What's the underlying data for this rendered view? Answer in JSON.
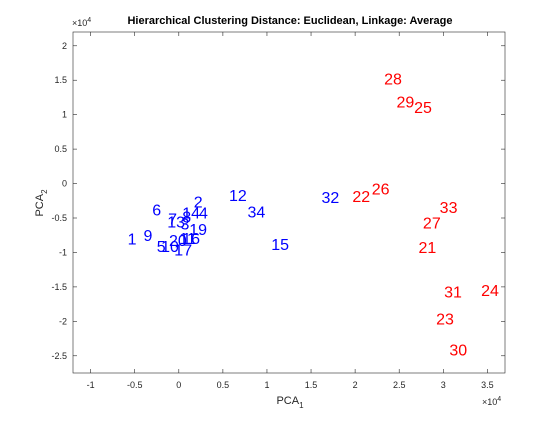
{
  "chart_data": {
    "type": "scatter",
    "title": "Hierarchical Clustering Distance: Euclidean, Linkage: Average",
    "xlabel": "PCA",
    "xlabel_sub": "1",
    "ylabel": "PCA",
    "ylabel_sub": "2",
    "x_multiplier": "×10",
    "x_multiplier_exp": "4",
    "y_multiplier": "×10",
    "y_multiplier_exp": "4",
    "xlim": [
      -1.2,
      3.7
    ],
    "ylim": [
      -2.75,
      2.2
    ],
    "xticks": [
      -1,
      -0.5,
      0,
      0.5,
      1,
      1.5,
      2,
      2.5,
      3,
      3.5
    ],
    "xtick_labels": [
      "-1",
      "-0.5",
      "0",
      "0.5",
      "1",
      "1.5",
      "2",
      "2.5",
      "3",
      "3.5"
    ],
    "yticks": [
      -2.5,
      -2,
      -1.5,
      -1,
      -0.5,
      0,
      0.5,
      1,
      1.5,
      2
    ],
    "ytick_labels": [
      "-2.5",
      "-2",
      "-1.5",
      "-1",
      "-0.5",
      "0",
      "0.5",
      "1",
      "1.5",
      "2"
    ],
    "grid": false,
    "colors": {
      "cluster1": "#0000ff",
      "cluster2": "#ff0000"
    },
    "series": [
      {
        "color": "#0000ff",
        "points": [
          {
            "label": "1",
            "x": -0.53,
            "y": -0.82
          },
          {
            "label": "9",
            "x": -0.35,
            "y": -0.77
          },
          {
            "label": "5",
            "x": -0.2,
            "y": -0.93
          },
          {
            "label": "10",
            "x": -0.1,
            "y": -0.93
          },
          {
            "label": "6",
            "x": -0.25,
            "y": -0.4
          },
          {
            "label": "7",
            "x": -0.07,
            "y": -0.53
          },
          {
            "label": "13",
            "x": -0.03,
            "y": -0.57
          },
          {
            "label": "8",
            "x": 0.09,
            "y": -0.5
          },
          {
            "label": "3",
            "x": 0.07,
            "y": -0.6
          },
          {
            "label": "20",
            "x": -0.01,
            "y": -0.84
          },
          {
            "label": "16",
            "x": 0.14,
            "y": -0.81
          },
          {
            "label": "11",
            "x": 0.1,
            "y": -0.81
          },
          {
            "label": "17",
            "x": 0.05,
            "y": -0.98
          },
          {
            "label": "19",
            "x": 0.22,
            "y": -0.68
          },
          {
            "label": "14",
            "x": 0.14,
            "y": -0.44
          },
          {
            "label": "4",
            "x": 0.28,
            "y": -0.44
          },
          {
            "label": "2",
            "x": 0.22,
            "y": -0.28
          },
          {
            "label": "12",
            "x": 0.67,
            "y": -0.19
          },
          {
            "label": "34",
            "x": 0.88,
            "y": -0.43
          },
          {
            "label": "15",
            "x": 1.15,
            "y": -0.9
          },
          {
            "label": "32",
            "x": 1.72,
            "y": -0.22
          }
        ]
      },
      {
        "color": "#ff0000",
        "points": [
          {
            "label": "28",
            "x": 2.43,
            "y": 1.5
          },
          {
            "label": "29",
            "x": 2.57,
            "y": 1.17
          },
          {
            "label": "25",
            "x": 2.77,
            "y": 1.09
          },
          {
            "label": "26",
            "x": 2.29,
            "y": -0.09
          },
          {
            "label": "22",
            "x": 2.07,
            "y": -0.2
          },
          {
            "label": "33",
            "x": 3.06,
            "y": -0.36
          },
          {
            "label": "27",
            "x": 2.87,
            "y": -0.59
          },
          {
            "label": "21",
            "x": 2.82,
            "y": -0.94
          },
          {
            "label": "31",
            "x": 3.11,
            "y": -1.59
          },
          {
            "label": "24",
            "x": 3.53,
            "y": -1.57
          },
          {
            "label": "23",
            "x": 3.02,
            "y": -1.98
          },
          {
            "label": "30",
            "x": 3.17,
            "y": -2.43
          }
        ]
      }
    ]
  }
}
